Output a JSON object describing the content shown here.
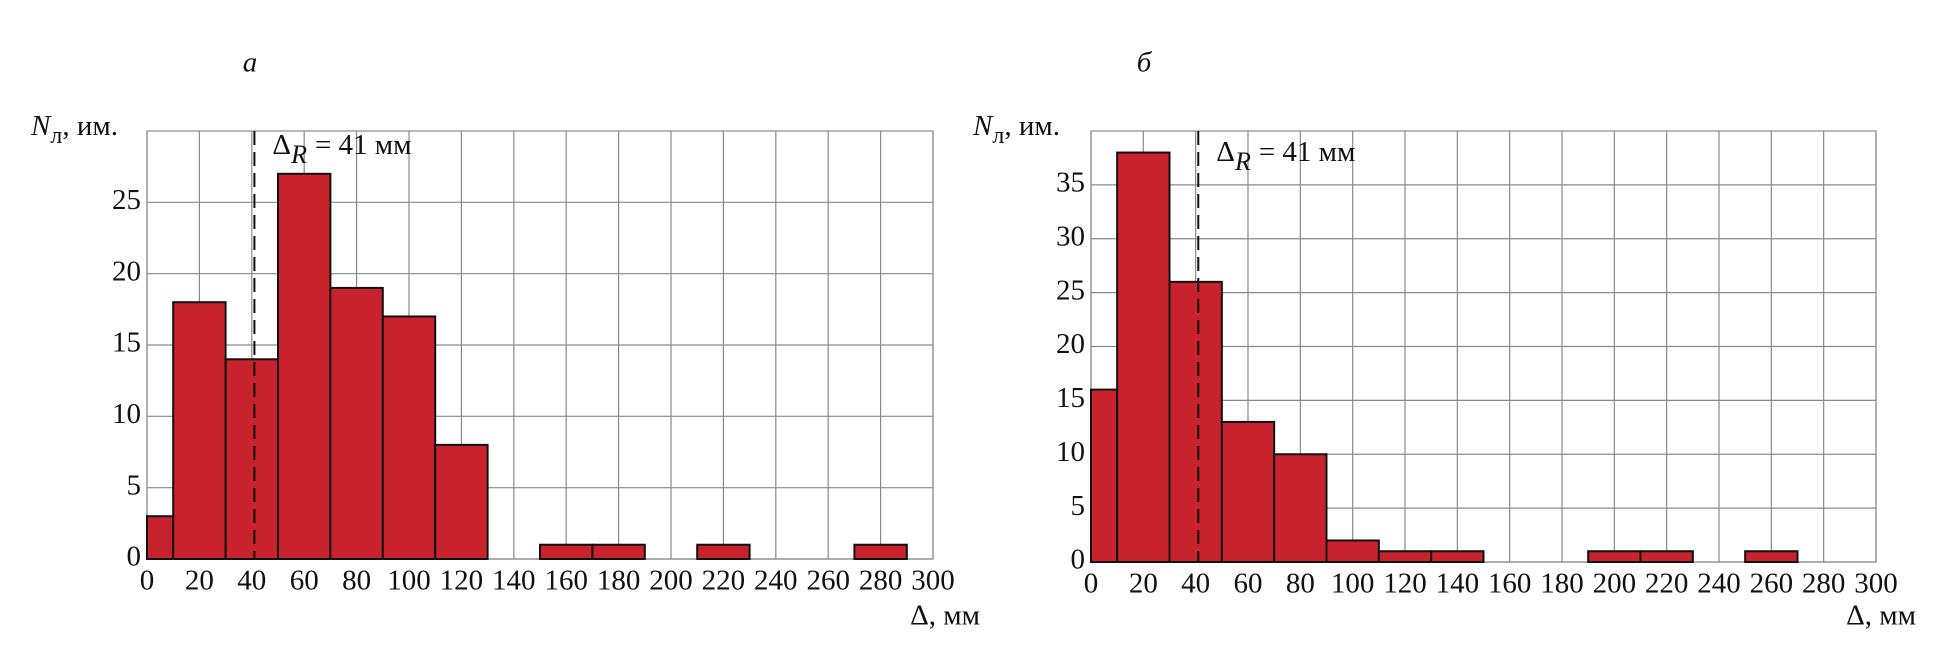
{
  "chart_data": [
    {
      "type": "histogram",
      "title": "а",
      "y_label_symbol": "N",
      "y_label_subscript": "л",
      "y_label_text": ", им.",
      "x_label": "Δ, мм",
      "bins": [
        0,
        10,
        30,
        50,
        70,
        90,
        110,
        130,
        150,
        170,
        190,
        210,
        230,
        250,
        270,
        290
      ],
      "counts": [
        3,
        18,
        14,
        27,
        19,
        17,
        8,
        0,
        1,
        1,
        0,
        1,
        0,
        0,
        1
      ],
      "color": "#c8232c",
      "xlim": [
        0,
        300
      ],
      "xticks": [
        0,
        20,
        40,
        60,
        80,
        100,
        120,
        140,
        160,
        180,
        200,
        220,
        240,
        260,
        280,
        300
      ],
      "ylim": [
        0,
        30
      ],
      "yticks": [
        0,
        5,
        10,
        15,
        20,
        25
      ],
      "grid": true,
      "annotation_x": 41,
      "annotation_symbol": "Δ",
      "annotation_subscript": "R",
      "annotation_text": "= 41 мм"
    },
    {
      "type": "histogram",
      "title": "б",
      "y_label_symbol": "N",
      "y_label_subscript": "л",
      "y_label_text": ", им.",
      "x_label": "Δ, мм",
      "bins": [
        0,
        10,
        30,
        50,
        70,
        90,
        110,
        130,
        150,
        170,
        190,
        210,
        230,
        250,
        270
      ],
      "counts": [
        16,
        38,
        26,
        13,
        10,
        2,
        1,
        1,
        0,
        0,
        1,
        1,
        0,
        1
      ],
      "color": "#c8232c",
      "xlim": [
        0,
        300
      ],
      "xticks": [
        0,
        20,
        40,
        60,
        80,
        100,
        120,
        140,
        160,
        180,
        200,
        220,
        240,
        260,
        280,
        300
      ],
      "ylim": [
        0,
        40
      ],
      "yticks": [
        0,
        5,
        10,
        15,
        20,
        25,
        30,
        35
      ],
      "grid": true,
      "annotation_x": 41,
      "annotation_symbol": "Δ",
      "annotation_subscript": "R",
      "annotation_text": "= 41 мм"
    }
  ]
}
